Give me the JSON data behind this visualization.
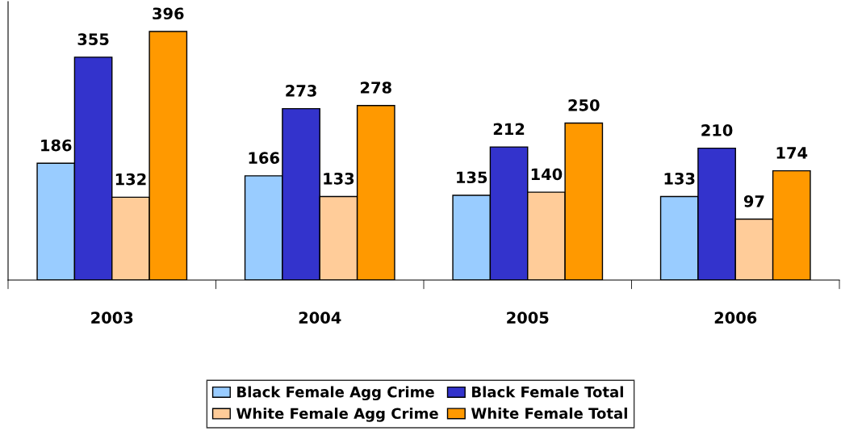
{
  "chart_data": {
    "type": "bar",
    "categories": [
      "2003",
      "2004",
      "2005",
      "2006"
    ],
    "series": [
      {
        "name": "Black Female Agg Crime",
        "color": "#99ccff",
        "values": [
          186,
          166,
          135,
          133
        ]
      },
      {
        "name": "Black Female Total",
        "color": "#3333cc",
        "values": [
          355,
          273,
          212,
          210
        ]
      },
      {
        "name": "White Female Agg Crime",
        "color": "#ffcc99",
        "values": [
          132,
          133,
          140,
          97
        ]
      },
      {
        "name": "White Female Total",
        "color": "#ff9900",
        "values": [
          396,
          278,
          250,
          174
        ]
      }
    ],
    "data_labels": true,
    "legend": "bottom",
    "grid": false
  }
}
